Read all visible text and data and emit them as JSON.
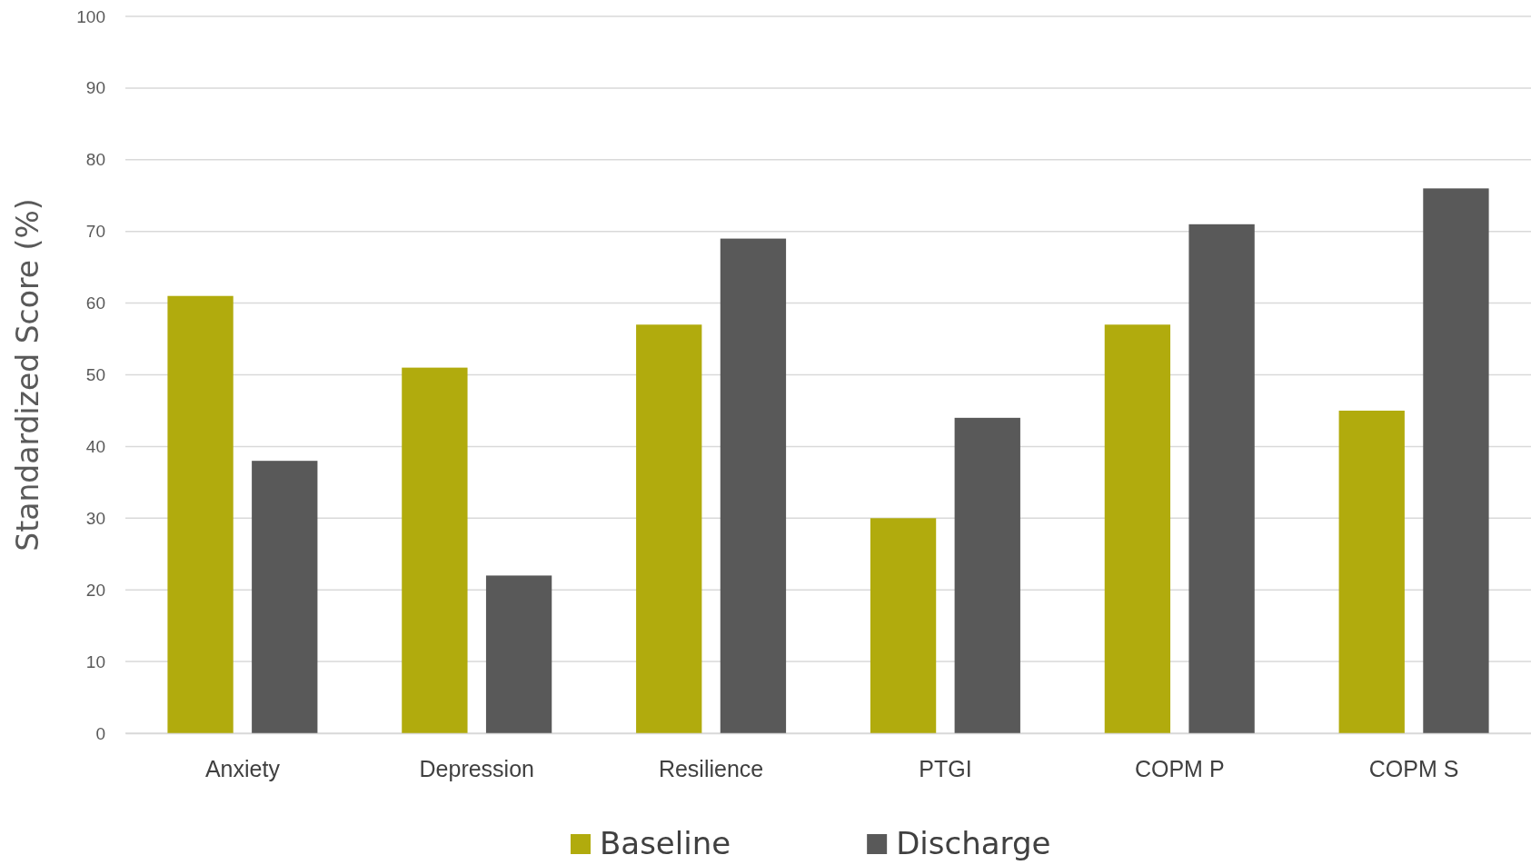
{
  "chart_data": {
    "type": "bar",
    "ylabel": "Standardized Score (%)",
    "categories": [
      "Anxiety",
      "Depression",
      "Resilience",
      "PTGI",
      "COPM P",
      "COPM S"
    ],
    "series": [
      {
        "name": "Baseline",
        "color": "#b1ab0d",
        "values": [
          61,
          51,
          57,
          30,
          57,
          45
        ]
      },
      {
        "name": "Discharge",
        "color": "#595959",
        "values": [
          38,
          22,
          69,
          44,
          71,
          76
        ]
      }
    ],
    "ylim": [
      0,
      100
    ],
    "yticks": [
      0,
      10,
      20,
      30,
      40,
      50,
      60,
      70,
      80,
      90,
      100
    ],
    "grid": "y",
    "legend": "bottom"
  }
}
